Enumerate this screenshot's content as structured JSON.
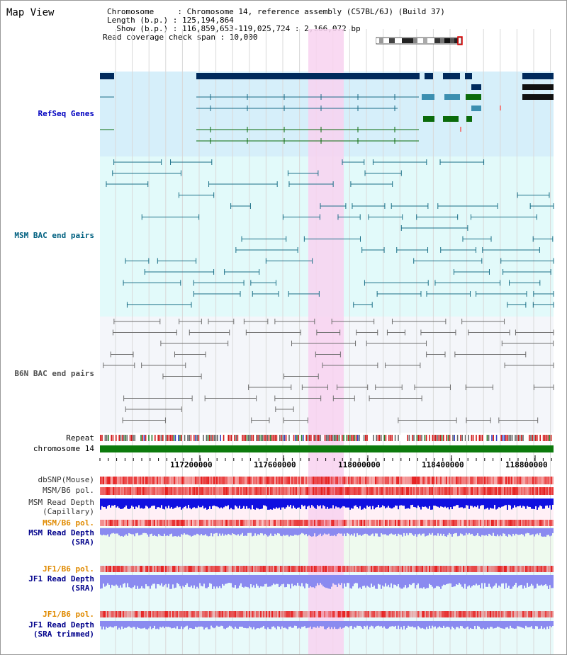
{
  "header": {
    "title": "Map View",
    "chromosome_line": "Chromosome     : Chromosome 14, reference assembly (C57BL/6J) (Build 37)",
    "length_line": "Length (b.p.) : 125,194,864",
    "show_line": "  Show (b.p.) : 116,859,653-119,025,724 : 2,166,072 bp",
    "coverage_line": "Read coverage check span : 10,000"
  },
  "tracks": {
    "refseq": "RefSeq Genes",
    "msm_bac": "MSM BAC end pairs",
    "b6n_bac": "B6N BAC end pairs",
    "repeat": "Repeat",
    "chromosome": "chromosome 14",
    "dbsnp": "dbSNP(Mouse)",
    "msm_b6_pol_1": "MSM/B6 pol.",
    "msm_read_depth_cap_1": "MSM Read Depth",
    "msm_read_depth_cap_2": "(Capillary)",
    "msm_b6_pol_2": "MSM/B6 pol.",
    "msm_read_depth_sra_1": "MSM Read Depth",
    "msm_read_depth_sra_2": "(SRA)",
    "jf1_b6_pol_1": "JF1/B6 pol.",
    "jf1_read_depth_sra_1": "JF1 Read Depth",
    "jf1_read_depth_sra_2": "(SRA)",
    "jf1_b6_pol_2": "JF1/B6 pol.",
    "jf1_read_depth_trim_1": "JF1 Read Depth",
    "jf1_read_depth_trim_2": "(SRA trimmed)"
  },
  "axis": {
    "ticks": [
      "117200000",
      "117600000",
      "118000000",
      "118400000",
      "118800000"
    ]
  },
  "colors": {
    "refseq_bg": "#d6effa",
    "msm_bg": "#e2fafa",
    "b6n_bg": "#f4f6fa",
    "highlight": "#f8d2f0",
    "gene_navy": "#002a5c",
    "gene_teal": "#1a6b87",
    "gene_green": "#0b6b0b",
    "bac_msm": "#1a6f87",
    "bac_b6n": "#707070",
    "chrom_bar": "#0c7a0c",
    "label_refseq": "#0000c0",
    "label_msm": "#006080",
    "label_b6n": "#505050",
    "label_orange": "#e08a00",
    "label_blue": "#00008b",
    "depth_blue": "#1010e0",
    "depth_light": "#8a8af0"
  }
}
